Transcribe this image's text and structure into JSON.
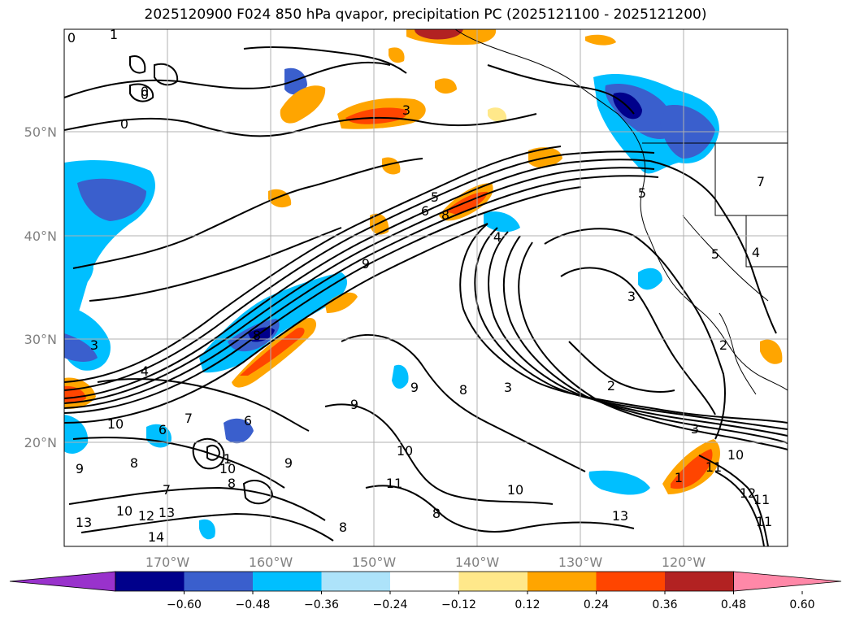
{
  "title": "2025120900 F024 850 hPa qvapor, precipitation PC (2025121100 - 2025121200)",
  "map": {
    "lon_labels": [
      "170°W",
      "160°W",
      "150°W",
      "140°W",
      "130°W",
      "120°W"
    ],
    "lat_labels": [
      "50°N",
      "40°N",
      "30°N",
      "20°N"
    ],
    "contour_labels": [
      "0",
      "1",
      "0",
      "0",
      "0",
      "3",
      "5",
      "6",
      "8",
      "9",
      "8",
      "4",
      "7",
      "5",
      "4",
      "3",
      "2",
      "3",
      "3",
      "10",
      "4",
      "3",
      "5",
      "2",
      "9",
      "9",
      "8",
      "10",
      "6",
      "7",
      "6",
      "9",
      "10",
      "11",
      "8",
      "10",
      "11",
      "8",
      "13",
      "12",
      "11",
      "10",
      "12",
      "13",
      "13",
      "14",
      "10",
      "9",
      "11",
      "8",
      "8",
      "7",
      "1",
      "1"
    ],
    "colors": {
      "neg_060": "#9932CC",
      "neg_048": "#00008B",
      "neg_036": "#3A5FCD",
      "neg_024": "#00BFFF",
      "neg_012": "#ADE3FA",
      "zero": "#FFFFFF",
      "pos_012": "#FFE88A",
      "pos_024": "#FFA500",
      "pos_036": "#FF4500",
      "pos_048": "#B22222",
      "pos_060": "#FF88A8"
    }
  },
  "colorbar": {
    "ticks": [
      "−0.60",
      "−0.48",
      "−0.36",
      "−0.24",
      "−0.12",
      "0.12",
      "0.24",
      "0.36",
      "0.48",
      "0.60"
    ],
    "colors": [
      "#9932CC",
      "#00008B",
      "#3A5FCD",
      "#00BFFF",
      "#ADE3FA",
      "#FFFFFF",
      "#FFE88A",
      "#FFA500",
      "#FF4500",
      "#B22222",
      "#FF88A8"
    ]
  }
}
